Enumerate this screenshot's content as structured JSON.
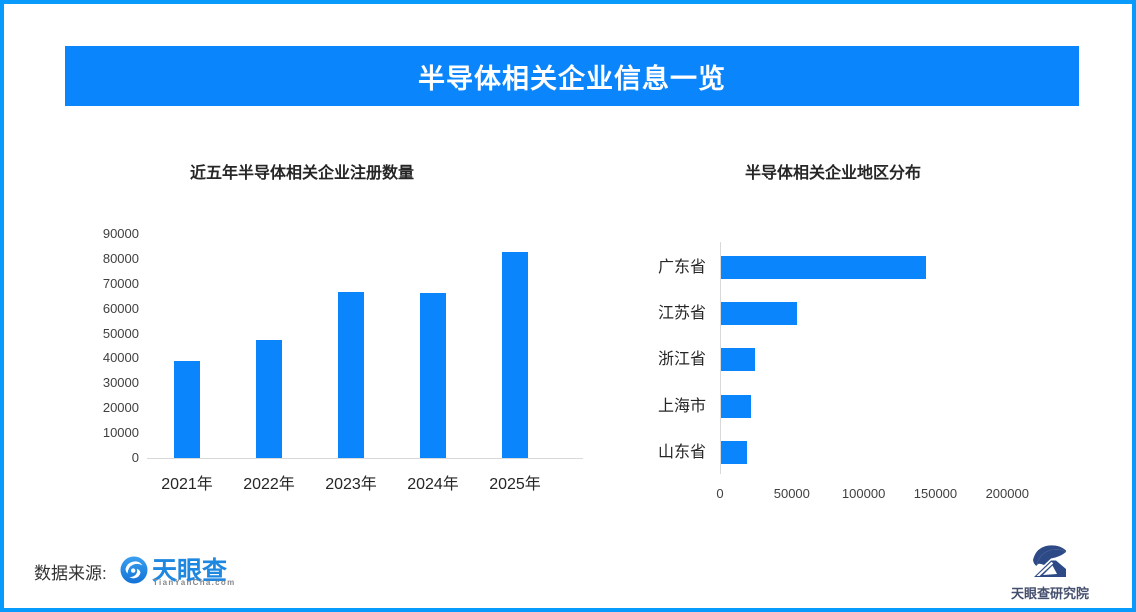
{
  "page": {
    "title": "半导体相关企业信息一览",
    "colors": {
      "accent_blue": "#0b85fb",
      "border_blue": "#099bfc",
      "axis_line": "#d9d9d9",
      "title_text": "#262626",
      "tick_text": "#404040",
      "brand_blue": "#1e87e0",
      "brand_gray": "#85888d",
      "research_navy": "#2d4a87"
    }
  },
  "footer": {
    "source_label": "数据来源:",
    "tianyancha_logo": {
      "wordmark": "天眼查",
      "domain": "TianYanCha.com"
    },
    "research_logo": {
      "label": "天眼查研究院"
    }
  },
  "chart_data": [
    {
      "type": "bar",
      "orientation": "vertical",
      "title": "近五年半导体相关企业注册数量",
      "categories": [
        "2021年",
        "2022年",
        "2023年",
        "2024年",
        "2025年"
      ],
      "values": [
        39000,
        47600,
        66800,
        66400,
        82800
      ],
      "ylim": [
        0,
        90000
      ],
      "ytick_step": 10000,
      "yticks": [
        0,
        10000,
        20000,
        30000,
        40000,
        50000,
        60000,
        70000,
        80000,
        90000
      ],
      "bar_color": "#0b85fb",
      "grid": false,
      "legend": "none"
    },
    {
      "type": "bar",
      "orientation": "horizontal",
      "title": "半导体相关企业地区分布",
      "categories": [
        "广东省",
        "江苏省",
        "浙江省",
        "上海市",
        "山东省"
      ],
      "values": [
        143000,
        52800,
        23600,
        20800,
        18000
      ],
      "xlim": [
        0,
        220000
      ],
      "xticks": [
        0,
        50000,
        100000,
        150000,
        200000
      ],
      "bar_color": "#0b85fb",
      "grid": false,
      "legend": "none"
    }
  ]
}
